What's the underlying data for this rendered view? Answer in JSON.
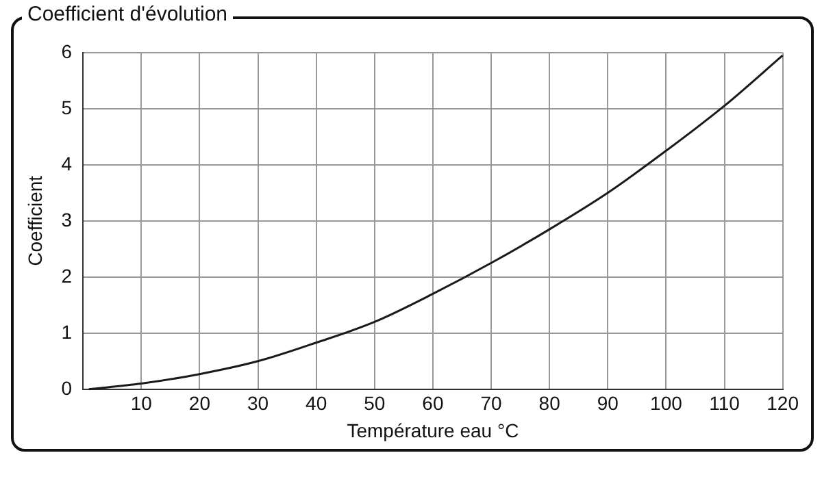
{
  "chart_data": {
    "type": "line",
    "title": "Coefficient  d'évolution",
    "xlabel": "Température eau °C",
    "ylabel": "Coefficient",
    "x": [
      1,
      10,
      20,
      30,
      40,
      50,
      60,
      70,
      80,
      90,
      100,
      110,
      120
    ],
    "series": [
      {
        "color": "#1a1a1a",
        "values": [
          0,
          0.1,
          0.27,
          0.5,
          0.83,
          1.2,
          1.7,
          2.25,
          2.85,
          3.5,
          4.25,
          5.05,
          5.95
        ]
      }
    ],
    "xlim": [
      0,
      120
    ],
    "xticks": [
      10,
      20,
      30,
      40,
      50,
      60,
      70,
      80,
      90,
      100,
      110,
      120
    ],
    "ylim": [
      0,
      6
    ],
    "yticks": [
      0,
      1,
      2,
      3,
      4,
      5,
      6
    ],
    "grid": true,
    "legend": false,
    "marker": "none",
    "line_style": "solid"
  }
}
